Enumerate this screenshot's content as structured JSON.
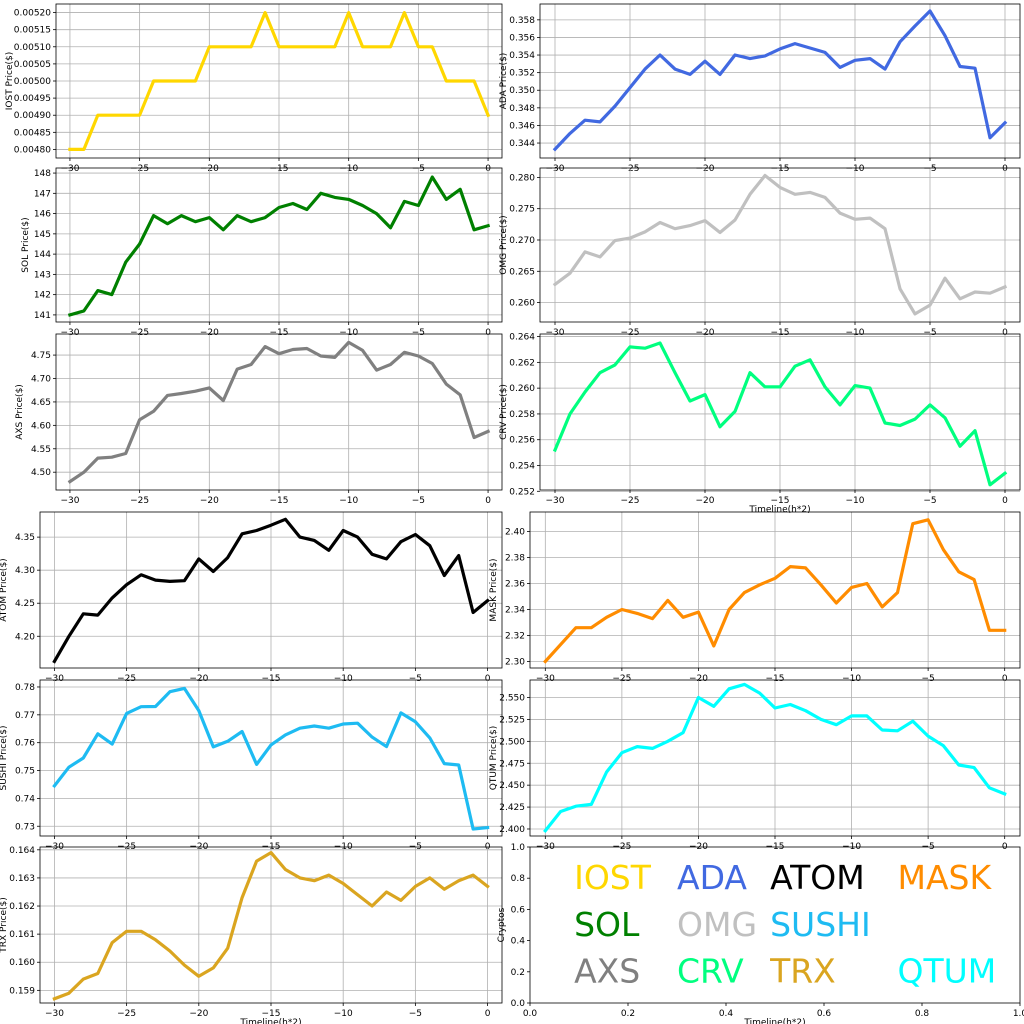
{
  "chart_data": [
    {
      "type": "line",
      "ylabel": "IOST Price($)",
      "xlabel": "",
      "color": "#FFD700",
      "xlim": [
        -31,
        1
      ],
      "ylim": [
        0.004775,
        0.005225
      ],
      "xticks": [
        -30,
        -25,
        -20,
        -15,
        -10,
        -5,
        0
      ],
      "xtick_labels": [
        "−30",
        "−25",
        "−20",
        "−15",
        "−10",
        "−5",
        "0"
      ],
      "yticks": [
        0.0048,
        0.00485,
        0.0049,
        0.00495,
        0.005,
        0.00505,
        0.0051,
        0.00515,
        0.0052
      ],
      "ytick_labels": [
        "0.00480",
        "0.00485",
        "0.00490",
        "0.00495",
        "0.00500",
        "0.00505",
        "0.00510",
        "0.00515",
        "0.00520"
      ],
      "x": [
        -30,
        -29,
        -28,
        -27,
        -26,
        -25,
        -24,
        -23,
        -22,
        -21,
        -20,
        -19,
        -18,
        -17,
        -16,
        -15,
        -14,
        -13,
        -12,
        -11,
        -10,
        -9,
        -8,
        -7,
        -6,
        -5,
        -4,
        -3,
        -2,
        -1,
        0
      ],
      "y": [
        0.0048,
        0.0048,
        0.0049,
        0.0049,
        0.0049,
        0.0049,
        0.005,
        0.005,
        0.005,
        0.005,
        0.0051,
        0.0051,
        0.0051,
        0.0051,
        0.0052,
        0.0051,
        0.0051,
        0.0051,
        0.0051,
        0.0051,
        0.0052,
        0.0051,
        0.0051,
        0.0051,
        0.0052,
        0.0051,
        0.0051,
        0.005,
        0.005,
        0.005,
        0.0049
      ]
    },
    {
      "type": "line",
      "ylabel": "ADA  Price($)",
      "xlabel": "",
      "color": "#4169E1",
      "xlim": [
        -31,
        1
      ],
      "ylim": [
        0.3423,
        0.3598
      ],
      "xticks": [
        -30,
        -25,
        -20,
        -15,
        -10,
        -5,
        0
      ],
      "xtick_labels": [
        "−30",
        "−25",
        "−20",
        "−15",
        "−10",
        "−5",
        "0"
      ],
      "yticks": [
        0.344,
        0.346,
        0.348,
        0.35,
        0.352,
        0.354,
        0.356,
        0.358
      ],
      "ytick_labels": [
        "0.344",
        "0.346",
        "0.348",
        "0.350",
        "0.352",
        "0.354",
        "0.356",
        "0.358"
      ],
      "x": [
        -30,
        -29,
        -28,
        -27,
        -26,
        -25,
        -24,
        -23,
        -22,
        -21,
        -20,
        -19,
        -18,
        -17,
        -16,
        -15,
        -14,
        -13,
        -12,
        -11,
        -10,
        -9,
        -8,
        -7,
        -6,
        -5,
        -4,
        -3,
        -2,
        -1,
        0
      ],
      "y": [
        0.3433,
        0.3451,
        0.3466,
        0.3464,
        0.3482,
        0.3503,
        0.3524,
        0.354,
        0.3524,
        0.3518,
        0.3533,
        0.3518,
        0.354,
        0.3536,
        0.3539,
        0.3547,
        0.3553,
        0.3548,
        0.3543,
        0.3526,
        0.3534,
        0.3536,
        0.3524,
        0.3555,
        0.3573,
        0.359,
        0.3562,
        0.3527,
        0.3525,
        0.3446,
        0.3463
      ]
    },
    {
      "type": "line",
      "ylabel": "SOL Price($)",
      "xlabel": "",
      "color": "#008000",
      "xlim": [
        -31,
        1
      ],
      "ylim": [
        140.65,
        148.25
      ],
      "xticks": [
        -30,
        -25,
        -20,
        -15,
        -10,
        -5,
        0
      ],
      "xtick_labels": [
        "−30",
        "−25",
        "−20",
        "−15",
        "−10",
        "−5",
        "0"
      ],
      "yticks": [
        141,
        142,
        143,
        144,
        145,
        146,
        147,
        148
      ],
      "ytick_labels": [
        "141",
        "142",
        "143",
        "144",
        "145",
        "146",
        "147",
        "148"
      ],
      "x": [
        -30,
        -29,
        -28,
        -27,
        -26,
        -25,
        -24,
        -23,
        -22,
        -21,
        -20,
        -19,
        -18,
        -17,
        -16,
        -15,
        -14,
        -13,
        -12,
        -11,
        -10,
        -9,
        -8,
        -7,
        -6,
        -5,
        -4,
        -3,
        -2,
        -1,
        0
      ],
      "y": [
        141.0,
        141.2,
        142.2,
        142.0,
        143.6,
        144.5,
        145.9,
        145.5,
        145.9,
        145.6,
        145.8,
        145.2,
        145.9,
        145.6,
        145.8,
        146.3,
        146.5,
        146.2,
        147.0,
        146.8,
        146.7,
        146.4,
        146.0,
        145.3,
        146.6,
        146.4,
        147.8,
        146.7,
        147.2,
        145.2,
        145.4
      ]
    },
    {
      "type": "line",
      "ylabel": "OMG  Price($)",
      "xlabel": "",
      "color": "#C0C0C0",
      "xlim": [
        -31,
        1
      ],
      "ylim": [
        0.2569,
        0.2815
      ],
      "xticks": [
        -30,
        -25,
        -20,
        -15,
        -10,
        -5,
        0
      ],
      "xtick_labels": [
        "−30",
        "−25",
        "−20",
        "−15",
        "−10",
        "−5",
        "0"
      ],
      "yticks": [
        0.26,
        0.265,
        0.27,
        0.275,
        0.28
      ],
      "ytick_labels": [
        "0.260",
        "0.265",
        "0.270",
        "0.275",
        "0.280"
      ],
      "x": [
        -30,
        -29,
        -28,
        -27,
        -26,
        -25,
        -24,
        -23,
        -22,
        -21,
        -20,
        -19,
        -18,
        -17,
        -16,
        -15,
        -14,
        -13,
        -12,
        -11,
        -10,
        -9,
        -8,
        -7,
        -6,
        -5,
        -4,
        -3,
        -2,
        -1,
        0
      ],
      "y": [
        0.2629,
        0.2647,
        0.2681,
        0.2673,
        0.2699,
        0.2703,
        0.2713,
        0.2728,
        0.2718,
        0.2723,
        0.2731,
        0.2712,
        0.2732,
        0.2773,
        0.2803,
        0.2784,
        0.2773,
        0.2776,
        0.2768,
        0.2743,
        0.2733,
        0.2735,
        0.2718,
        0.2622,
        0.2582,
        0.2596,
        0.2639,
        0.2606,
        0.2617,
        0.2615,
        0.2625
      ]
    },
    {
      "type": "line",
      "ylabel": "AXS Price($)",
      "xlabel": "",
      "color": "#808080",
      "xlim": [
        -31,
        1
      ],
      "ylim": [
        4.462,
        4.795
      ],
      "xticks": [
        -30,
        -25,
        -20,
        -15,
        -10,
        -5,
        0
      ],
      "xtick_labels": [
        "−30",
        "−25",
        "−20",
        "−15",
        "−10",
        "−5",
        "0"
      ],
      "yticks": [
        4.5,
        4.55,
        4.6,
        4.65,
        4.7,
        4.75
      ],
      "ytick_labels": [
        "4.50",
        "4.55",
        "4.60",
        "4.65",
        "4.70",
        "4.75"
      ],
      "x": [
        -30,
        -29,
        -28,
        -27,
        -26,
        -25,
        -24,
        -23,
        -22,
        -21,
        -20,
        -19,
        -18,
        -17,
        -16,
        -15,
        -14,
        -13,
        -12,
        -11,
        -10,
        -9,
        -8,
        -7,
        -6,
        -5,
        -4,
        -3,
        -2,
        -1,
        0
      ],
      "y": [
        4.48,
        4.5,
        4.53,
        4.532,
        4.54,
        4.612,
        4.63,
        4.664,
        4.668,
        4.673,
        4.68,
        4.653,
        4.72,
        4.73,
        4.768,
        4.753,
        4.762,
        4.764,
        4.748,
        4.745,
        4.777,
        4.76,
        4.718,
        4.73,
        4.756,
        4.748,
        4.732,
        4.688,
        4.665,
        4.574,
        4.587
      ]
    },
    {
      "type": "line",
      "ylabel": "CRV  Price($)",
      "xlabel": "Timeline(h*2)",
      "color": "#00FF7F",
      "xlim": [
        -31,
        1
      ],
      "ylim": [
        0.2521,
        0.2642
      ],
      "xticks": [
        -30,
        -25,
        -20,
        -15,
        -10,
        -5,
        0
      ],
      "xtick_labels": [
        "−30",
        "−25",
        "−20",
        "−15",
        "−10",
        "−5",
        "0"
      ],
      "yticks": [
        0.252,
        0.254,
        0.256,
        0.258,
        0.26,
        0.262,
        0.264
      ],
      "ytick_labels": [
        "0.252",
        "0.254",
        "0.256",
        "0.258",
        "0.260",
        "0.262",
        "0.264"
      ],
      "x": [
        -30,
        -29,
        -28,
        -27,
        -26,
        -25,
        -24,
        -23,
        -22,
        -21,
        -20,
        -19,
        -18,
        -17,
        -16,
        -15,
        -14,
        -13,
        -12,
        -11,
        -10,
        -9,
        -8,
        -7,
        -6,
        -5,
        -4,
        -3,
        -2,
        -1,
        0
      ],
      "y": [
        0.2552,
        0.258,
        0.2597,
        0.2612,
        0.2618,
        0.2632,
        0.2631,
        0.2635,
        0.2612,
        0.259,
        0.2595,
        0.257,
        0.2582,
        0.2612,
        0.2601,
        0.2601,
        0.2617,
        0.2622,
        0.2601,
        0.2587,
        0.2602,
        0.26,
        0.2573,
        0.2571,
        0.2576,
        0.2587,
        0.2577,
        0.2555,
        0.2567,
        0.2525,
        0.2534
      ]
    },
    {
      "type": "line",
      "ylabel": "ATOM  Price($)",
      "xlabel": "",
      "color": "#000000",
      "xlim": [
        -31,
        1
      ],
      "ylim": [
        4.152,
        4.388
      ],
      "xticks": [
        -30,
        -25,
        -20,
        -15,
        -10,
        -5,
        0
      ],
      "xtick_labels": [
        "−30",
        "−25",
        "−20",
        "−15",
        "−10",
        "−5",
        "0"
      ],
      "yticks": [
        4.2,
        4.25,
        4.3,
        4.35
      ],
      "ytick_labels": [
        "4.20",
        "4.25",
        "4.30",
        "4.35"
      ],
      "x": [
        -30,
        -29,
        -28,
        -27,
        -26,
        -25,
        -24,
        -23,
        -22,
        -21,
        -20,
        -19,
        -18,
        -17,
        -16,
        -15,
        -14,
        -13,
        -12,
        -11,
        -10,
        -9,
        -8,
        -7,
        -6,
        -5,
        -4,
        -3,
        -2,
        -1,
        0
      ],
      "y": [
        4.162,
        4.2,
        4.234,
        4.232,
        4.258,
        4.278,
        4.293,
        4.285,
        4.283,
        4.284,
        4.317,
        4.298,
        4.319,
        4.355,
        4.36,
        4.368,
        4.377,
        4.35,
        4.345,
        4.33,
        4.36,
        4.35,
        4.324,
        4.317,
        4.343,
        4.354,
        4.337,
        4.292,
        4.322,
        4.236,
        4.254
      ]
    },
    {
      "type": "line",
      "ylabel": "MASK  Price($)",
      "xlabel": "",
      "color": "#FF8C00",
      "xlim": [
        -31,
        1
      ],
      "ylim": [
        2.295,
        2.415
      ],
      "xticks": [
        -30,
        -25,
        -20,
        -15,
        -10,
        -5,
        0
      ],
      "xtick_labels": [
        "−30",
        "−25",
        "−20",
        "−15",
        "−10",
        "−5",
        "0"
      ],
      "yticks": [
        2.3,
        2.32,
        2.34,
        2.36,
        2.38,
        2.4
      ],
      "ytick_labels": [
        "2.30",
        "2.32",
        "2.34",
        "2.36",
        "2.38",
        "2.40"
      ],
      "x": [
        -30,
        -29,
        -28,
        -27,
        -26,
        -25,
        -24,
        -23,
        -22,
        -21,
        -20,
        -19,
        -18,
        -17,
        -16,
        -15,
        -14,
        -13,
        -12,
        -11,
        -10,
        -9,
        -8,
        -7,
        -6,
        -5,
        -4,
        -3,
        -2,
        -1,
        0
      ],
      "y": [
        2.3,
        2.313,
        2.326,
        2.326,
        2.334,
        2.34,
        2.337,
        2.333,
        2.347,
        2.334,
        2.338,
        2.312,
        2.34,
        2.353,
        2.359,
        2.364,
        2.373,
        2.372,
        2.359,
        2.345,
        2.357,
        2.36,
        2.342,
        2.353,
        2.406,
        2.409,
        2.386,
        2.369,
        2.363,
        2.324,
        2.324
      ]
    },
    {
      "type": "line",
      "ylabel": "SUSHI  Price($)",
      "xlabel": "",
      "color": "#1EBBF2",
      "xlim": [
        -31,
        1
      ],
      "ylim": [
        0.7265,
        0.7825
      ],
      "xticks": [
        -30,
        -25,
        -20,
        -15,
        -10,
        -5,
        0
      ],
      "xtick_labels": [
        "−30",
        "−25",
        "−20",
        "−15",
        "−10",
        "−5",
        "0"
      ],
      "yticks": [
        0.73,
        0.74,
        0.75,
        0.76,
        0.77,
        0.78
      ],
      "ytick_labels": [
        "0.73",
        "0.74",
        "0.75",
        "0.76",
        "0.77",
        "0.78"
      ],
      "x": [
        -30,
        -29,
        -28,
        -27,
        -26,
        -25,
        -24,
        -23,
        -22,
        -21,
        -20,
        -19,
        -18,
        -17,
        -16,
        -15,
        -14,
        -13,
        -12,
        -11,
        -10,
        -9,
        -8,
        -7,
        -6,
        -5,
        -4,
        -3,
        -2,
        -1,
        0
      ],
      "y": [
        0.7445,
        0.7512,
        0.7545,
        0.7632,
        0.7595,
        0.7705,
        0.7729,
        0.773,
        0.7783,
        0.7795,
        0.7715,
        0.7585,
        0.7605,
        0.764,
        0.7522,
        0.7592,
        0.7628,
        0.7652,
        0.766,
        0.7652,
        0.7667,
        0.767,
        0.762,
        0.7586,
        0.7707,
        0.7675,
        0.7617,
        0.7525,
        0.752,
        0.729,
        0.7295
      ]
    },
    {
      "type": "line",
      "ylabel": "QTUM Price($)",
      "xlabel": "",
      "color": "#00FFFF",
      "xlim": [
        -31,
        1
      ],
      "ylim": [
        2.392,
        2.57
      ],
      "xticks": [
        -30,
        -25,
        -20,
        -15,
        -10,
        -5,
        0
      ],
      "xtick_labels": [
        "−30",
        "−25",
        "−20",
        "−15",
        "−10",
        "−5",
        "0"
      ],
      "yticks": [
        2.4,
        2.425,
        2.45,
        2.475,
        2.5,
        2.525,
        2.55
      ],
      "ytick_labels": [
        "2.400",
        "2.425",
        "2.450",
        "2.475",
        "2.500",
        "2.525",
        "2.550"
      ],
      "x": [
        -30,
        -29,
        -28,
        -27,
        -26,
        -25,
        -24,
        -23,
        -22,
        -21,
        -20,
        -19,
        -18,
        -17,
        -16,
        -15,
        -14,
        -13,
        -12,
        -11,
        -10,
        -9,
        -8,
        -7,
        -6,
        -5,
        -4,
        -3,
        -2,
        -1,
        0
      ],
      "y": [
        2.398,
        2.42,
        2.426,
        2.428,
        2.465,
        2.487,
        2.494,
        2.492,
        2.5,
        2.51,
        2.55,
        2.54,
        2.56,
        2.565,
        2.555,
        2.538,
        2.542,
        2.535,
        2.525,
        2.519,
        2.529,
        2.529,
        2.513,
        2.512,
        2.523,
        2.506,
        2.495,
        2.473,
        2.47,
        2.447,
        2.44
      ]
    },
    {
      "type": "line",
      "ylabel": "TRX Price($)",
      "xlabel": "Timeline(h*2)",
      "color": "#DAA520",
      "xlim": [
        -31,
        1
      ],
      "ylim": [
        0.15855,
        0.1641
      ],
      "xticks": [
        -30,
        -25,
        -20,
        -15,
        -10,
        -5,
        0
      ],
      "xtick_labels": [
        "−30",
        "−25",
        "−20",
        "−15",
        "−10",
        "−5",
        "0"
      ],
      "yticks": [
        0.159,
        0.16,
        0.161,
        0.162,
        0.163,
        0.164
      ],
      "ytick_labels": [
        "0.159",
        "0.160",
        "0.161",
        "0.162",
        "0.163",
        "0.164"
      ],
      "x": [
        -30,
        -29,
        -28,
        -27,
        -26,
        -25,
        -24,
        -23,
        -22,
        -21,
        -20,
        -19,
        -18,
        -17,
        -16,
        -15,
        -14,
        -13,
        -12,
        -11,
        -10,
        -9,
        -8,
        -7,
        -6,
        -5,
        -4,
        -3,
        -2,
        -1,
        0
      ],
      "y": [
        0.1587,
        0.1589,
        0.1594,
        0.1596,
        0.1607,
        0.1611,
        0.1611,
        0.1608,
        0.1604,
        0.1599,
        0.1595,
        0.1598,
        0.1605,
        0.1623,
        0.1636,
        0.1639,
        0.1633,
        0.163,
        0.1629,
        0.1631,
        0.1628,
        0.1624,
        0.162,
        0.1625,
        0.1622,
        0.1627,
        0.163,
        0.1626,
        0.1629,
        0.1631,
        0.1627
      ]
    },
    {
      "type": "legend_panel",
      "ylabel": "Cryptos",
      "xlabel": "Timeline(h*2)",
      "xlim": [
        0,
        1
      ],
      "ylim": [
        0,
        1
      ],
      "xticks": [
        0,
        0.2,
        0.4,
        0.6,
        0.8,
        1
      ],
      "xtick_labels": [
        "0.0",
        "0.2",
        "0.4",
        "0.6",
        "0.8",
        "1.0"
      ],
      "yticks": [
        0,
        0.2,
        0.4,
        0.6,
        0.8,
        1
      ],
      "ytick_labels": [
        "0.0",
        "0.2",
        "0.4",
        "0.6",
        "0.8",
        "1.0"
      ],
      "entries": [
        {
          "label": "IOST",
          "color": "#FFD700"
        },
        {
          "label": "ADA",
          "color": "#4169E1"
        },
        {
          "label": "ATOM",
          "color": "#000000"
        },
        {
          "label": "MASK",
          "color": "#FF8C00"
        },
        {
          "label": "SOL",
          "color": "#008000"
        },
        {
          "label": "OMG",
          "color": "#C0C0C0"
        },
        {
          "label": "SUSHI",
          "color": "#1EBBF2"
        },
        {
          "label": "AXS",
          "color": "#808080"
        },
        {
          "label": "CRV",
          "color": "#00FF7F"
        },
        {
          "label": "TRX",
          "color": "#DAA520"
        },
        {
          "label": "QTUM",
          "color": "#00FFFF"
        }
      ]
    }
  ]
}
